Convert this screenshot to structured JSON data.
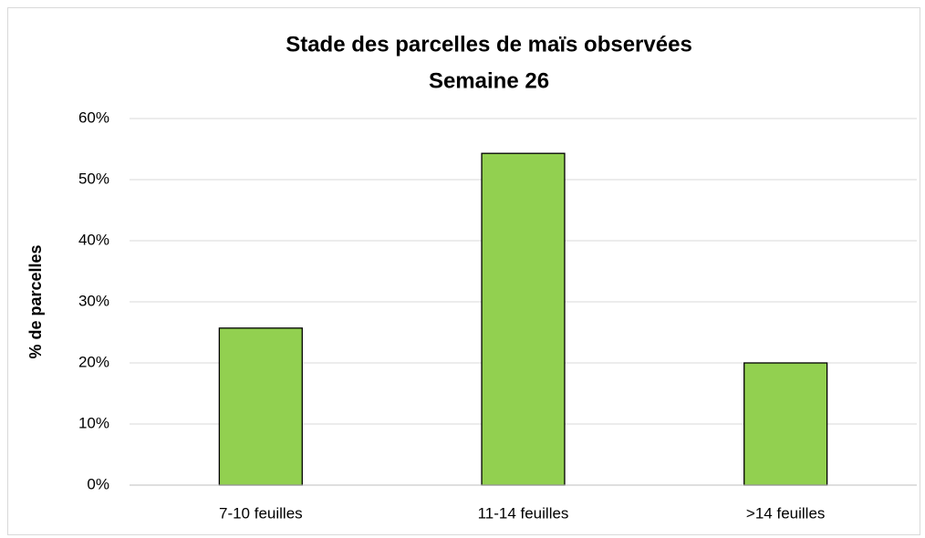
{
  "chart_data": {
    "type": "bar",
    "title": "Stade des parcelles de maïs observées",
    "subtitle": "Semaine 26",
    "y_label": "% de parcelles",
    "categories": [
      "7-10 feuilles",
      "11-14 feuilles",
      ">14 feuilles"
    ],
    "values": [
      25.7,
      54.3,
      20.0
    ],
    "color": "#92d050",
    "ylim": [
      0,
      60
    ],
    "yticks": [
      {
        "value": 0,
        "label": "0%"
      },
      {
        "value": 10,
        "label": "10%"
      },
      {
        "value": 20,
        "label": "20%"
      },
      {
        "value": 30,
        "label": "30%"
      },
      {
        "value": 40,
        "label": "40%"
      },
      {
        "value": 50,
        "label": "50%"
      },
      {
        "value": 60,
        "label": "60%"
      }
    ],
    "grid": true
  }
}
